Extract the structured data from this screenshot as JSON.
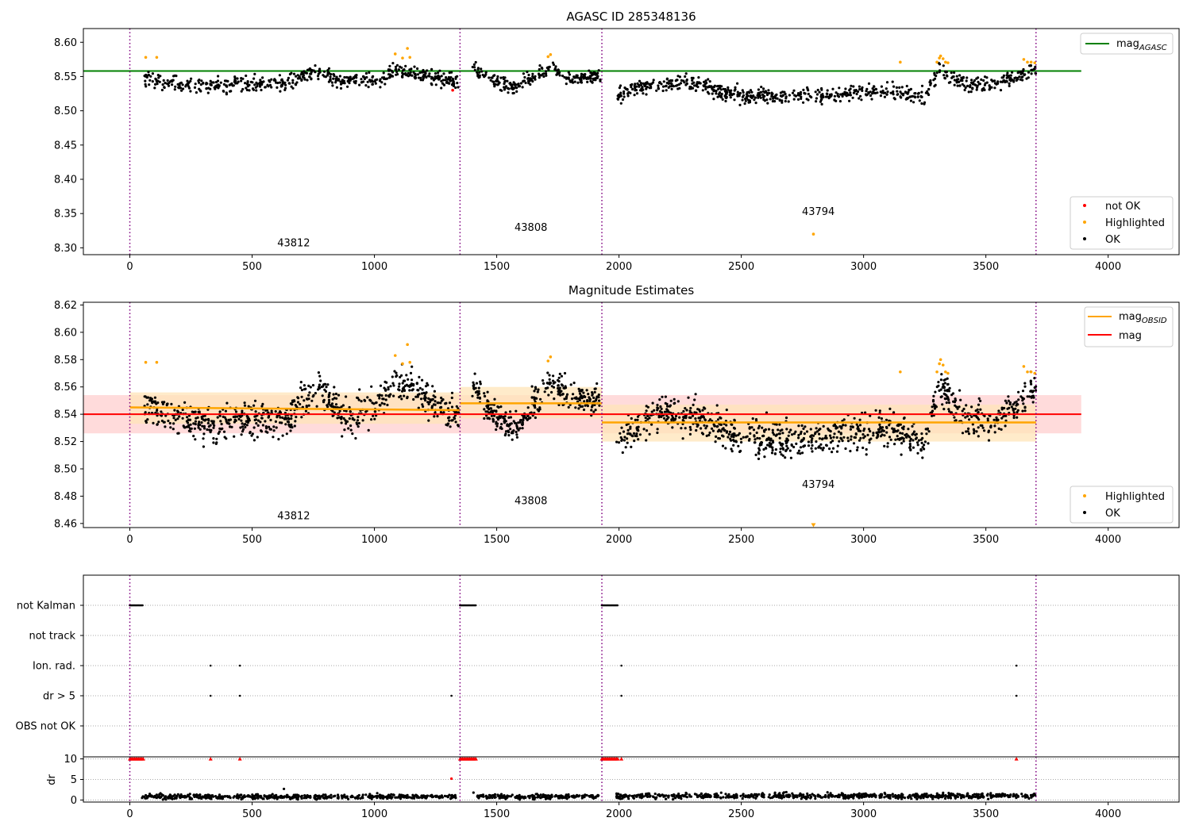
{
  "colors": {
    "ok": "#000000",
    "highlighted": "#ffa500",
    "not_ok": "#ff0000",
    "agasc_line": "#008000",
    "mag_line": "#ff0000",
    "mag_obsid_line": "#ffa500",
    "obs_boundary": "#800080",
    "band_mag": "#ffcccc",
    "band_obsid": "#ffe4b8"
  },
  "chart_data": [
    {
      "type": "scatter",
      "title": "AGASC ID 285348136",
      "xlabel": "",
      "ylabel": "",
      "xlim": [
        -190,
        4290
      ],
      "ylim": [
        8.29,
        8.62
      ],
      "x_ticks": [
        "0",
        "500",
        "1000",
        "1500",
        "2000",
        "2500",
        "3000",
        "3500",
        "4000"
      ],
      "y_ticks": [
        "8.30",
        "8.35",
        "8.40",
        "8.45",
        "8.50",
        "8.55",
        "8.60"
      ],
      "grid": false,
      "mag_agasc": 8.558,
      "mag_agasc_xrange": [
        -190,
        3890
      ],
      "obs_boundaries": [
        0,
        1350,
        1930,
        3705
      ],
      "observations": [
        {
          "obsid": "43812",
          "x_range": [
            0,
            1350
          ],
          "label_x": 670,
          "label_y": 8.302
        },
        {
          "obsid": "43808",
          "x_range": [
            1350,
            1930
          ],
          "label_x": 1640,
          "label_y": 8.325
        },
        {
          "obsid": "43794",
          "x_range": [
            1930,
            3705
          ],
          "label_x": 2815,
          "label_y": 8.348
        }
      ],
      "legends": [
        {
          "position": "top-right",
          "entries": [
            {
              "label": "mag",
              "subscript": "AGASC",
              "kind": "line",
              "color": "#008000"
            }
          ]
        },
        {
          "position": "bottom-right",
          "entries": [
            {
              "label": "not OK",
              "kind": "dot",
              "color": "#ff0000"
            },
            {
              "label": "Highlighted",
              "kind": "dot",
              "color": "#ffa500"
            },
            {
              "label": "OK",
              "kind": "dot",
              "color": "#000000"
            }
          ]
        }
      ],
      "series": [
        {
          "name": "OK",
          "color": "#000000",
          "segments": [
            {
              "x_start": 60,
              "x_end": 1345,
              "levels": [
                [
                  60,
                  8.548
                ],
                [
                  250,
                  8.535
                ],
                [
                  450,
                  8.538
                ],
                [
                  650,
                  8.54
                ],
                [
                  750,
                  8.557
                ],
                [
                  880,
                  8.543
                ],
                [
                  1000,
                  8.545
                ],
                [
                  1100,
                  8.56
                ],
                [
                  1250,
                  8.55
                ],
                [
                  1345,
                  8.54
                ]
              ],
              "spread": 0.007,
              "n": 520
            },
            {
              "x_start": 1400,
              "x_end": 1925,
              "levels": [
                [
                  1400,
                  8.562
                ],
                [
                  1500,
                  8.54
                ],
                [
                  1570,
                  8.535
                ],
                [
                  1720,
                  8.562
                ],
                [
                  1800,
                  8.548
                ],
                [
                  1925,
                  8.55
                ]
              ],
              "spread": 0.006,
              "n": 230
            },
            {
              "x_start": 1990,
              "x_end": 3705,
              "levels": [
                [
                  1990,
                  8.522
                ],
                [
                  2150,
                  8.54
                ],
                [
                  2300,
                  8.54
                ],
                [
                  2500,
                  8.522
                ],
                [
                  2800,
                  8.522
                ],
                [
                  3100,
                  8.53
                ],
                [
                  3250,
                  8.52
                ],
                [
                  3310,
                  8.562
                ],
                [
                  3400,
                  8.54
                ],
                [
                  3550,
                  8.54
                ],
                [
                  3705,
                  8.56
                ]
              ],
              "spread": 0.007,
              "n": 700
            }
          ]
        },
        {
          "name": "Highlighted",
          "color": "#ffa500",
          "points": [
            [
              65,
              8.578
            ],
            [
              110,
              8.578
            ],
            [
              1085,
              8.583
            ],
            [
              1135,
              8.591
            ],
            [
              1115,
              8.577
            ],
            [
              1145,
              8.578
            ],
            [
              1710,
              8.579
            ],
            [
              1720,
              8.582
            ],
            [
              3150,
              8.571
            ],
            [
              3300,
              8.571
            ],
            [
              3310,
              8.577
            ],
            [
              3315,
              8.58
            ],
            [
              3325,
              8.576
            ],
            [
              3335,
              8.571
            ],
            [
              3345,
              8.57
            ],
            [
              3655,
              8.575
            ],
            [
              3670,
              8.571
            ],
            [
              3685,
              8.571
            ],
            [
              3700,
              8.57
            ],
            [
              2795,
              8.32
            ]
          ]
        },
        {
          "name": "not OK",
          "color": "#ff0000",
          "points": [
            [
              1320,
              8.53
            ]
          ]
        }
      ]
    },
    {
      "type": "scatter",
      "title": "Magnitude Estimates",
      "xlabel": "",
      "ylabel": "",
      "xlim": [
        -190,
        4290
      ],
      "ylim": [
        8.457,
        8.622
      ],
      "x_ticks": [
        "0",
        "500",
        "1000",
        "1500",
        "2000",
        "2500",
        "3000",
        "3500",
        "4000"
      ],
      "y_ticks": [
        "8.46",
        "8.48",
        "8.50",
        "8.52",
        "8.54",
        "8.56",
        "8.58",
        "8.60",
        "8.62"
      ],
      "grid": false,
      "mag": 8.54,
      "mag_band": [
        8.526,
        8.554
      ],
      "mag_xrange": [
        -190,
        3890
      ],
      "mag_obsid": [
        {
          "obsid": "43812",
          "x_range": [
            0,
            1350
          ],
          "start": 8.545,
          "end": 8.543,
          "band": [
            8.533,
            8.556
          ]
        },
        {
          "obsid": "43808",
          "x_range": [
            1350,
            1930
          ],
          "start": 8.548,
          "end": 8.548,
          "band": [
            8.537,
            8.56
          ]
        },
        {
          "obsid": "43794",
          "x_range": [
            1930,
            3705
          ],
          "start": 8.534,
          "end": 8.534,
          "band": [
            8.52,
            8.547
          ]
        }
      ],
      "obs_boundaries": [
        0,
        1350,
        1930,
        3705
      ],
      "observations": [
        {
          "obsid": "43812",
          "label_x": 670,
          "label_y": 8.463
        },
        {
          "obsid": "43808",
          "label_x": 1640,
          "label_y": 8.474
        },
        {
          "obsid": "43794",
          "label_x": 2815,
          "label_y": 8.486
        }
      ],
      "legends": [
        {
          "position": "top-right",
          "entries": [
            {
              "label": "mag",
              "subscript": "OBSID",
              "kind": "line",
              "color": "#ffa500"
            },
            {
              "label": "mag",
              "kind": "line",
              "color": "#ff0000"
            }
          ]
        },
        {
          "position": "bottom-right",
          "entries": [
            {
              "label": "Highlighted",
              "kind": "dot",
              "color": "#ffa500"
            },
            {
              "label": "OK",
              "kind": "dot",
              "color": "#000000"
            }
          ]
        }
      ],
      "series": [
        {
          "name": "OK",
          "color": "#000000",
          "segments": [
            {
              "x_start": 60,
              "x_end": 1345,
              "levels": [
                [
                  60,
                  8.547
                ],
                [
                  200,
                  8.535
                ],
                [
                  350,
                  8.532
                ],
                [
                  500,
                  8.538
                ],
                [
                  650,
                  8.535
                ],
                [
                  780,
                  8.562
                ],
                [
                  880,
                  8.535
                ],
                [
                  1000,
                  8.545
                ],
                [
                  1100,
                  8.565
                ],
                [
                  1250,
                  8.548
                ],
                [
                  1345,
                  8.538
                ]
              ],
              "spread": 0.008,
              "n": 700
            },
            {
              "x_start": 1400,
              "x_end": 1925,
              "levels": [
                [
                  1400,
                  8.565
                ],
                [
                  1480,
                  8.54
                ],
                [
                  1570,
                  8.528
                ],
                [
                  1720,
                  8.565
                ],
                [
                  1800,
                  8.55
                ],
                [
                  1925,
                  8.552
                ]
              ],
              "spread": 0.007,
              "n": 320
            },
            {
              "x_start": 1990,
              "x_end": 3705,
              "levels": [
                [
                  1990,
                  8.52
                ],
                [
                  2150,
                  8.54
                ],
                [
                  2300,
                  8.54
                ],
                [
                  2500,
                  8.522
                ],
                [
                  2800,
                  8.522
                ],
                [
                  3100,
                  8.53
                ],
                [
                  3250,
                  8.518
                ],
                [
                  3310,
                  8.563
                ],
                [
                  3400,
                  8.538
                ],
                [
                  3550,
                  8.535
                ],
                [
                  3705,
                  8.56
                ]
              ],
              "spread": 0.008,
              "n": 900
            }
          ]
        },
        {
          "name": "Highlighted",
          "color": "#ffa500",
          "points": [
            [
              65,
              8.578
            ],
            [
              110,
              8.578
            ],
            [
              1085,
              8.583
            ],
            [
              1135,
              8.591
            ],
            [
              1115,
              8.577
            ],
            [
              1145,
              8.578
            ],
            [
              1710,
              8.579
            ],
            [
              1720,
              8.582
            ],
            [
              3150,
              8.571
            ],
            [
              3300,
              8.571
            ],
            [
              3310,
              8.577
            ],
            [
              3315,
              8.58
            ],
            [
              3325,
              8.576
            ],
            [
              3335,
              8.571
            ],
            [
              3345,
              8.57
            ],
            [
              3655,
              8.575
            ],
            [
              3670,
              8.571
            ],
            [
              3685,
              8.571
            ],
            [
              3700,
              8.57
            ]
          ]
        },
        {
          "name": "Highlighted (off-scale)",
          "color": "#ffa500",
          "marker": "triangle-down",
          "points": [
            [
              2795,
              8.459
            ]
          ]
        }
      ]
    },
    {
      "type": "scatter",
      "title": "",
      "xlabel": "",
      "ylabel": "",
      "xlim": [
        -190,
        4290
      ],
      "categories": [
        "not Kalman",
        "not track",
        "Ion. rad.",
        "dr > 5",
        "OBS not OK"
      ],
      "grid": "horizontal dotted",
      "obs_boundaries": [
        0,
        1350,
        1930,
        3705
      ],
      "flags": [
        {
          "category": "not Kalman",
          "ranges": [
            [
              0,
              55
            ],
            [
              1350,
              1415
            ],
            [
              1930,
              1995
            ]
          ],
          "points": []
        },
        {
          "category": "not track",
          "ranges": [],
          "points": []
        },
        {
          "category": "Ion. rad.",
          "ranges": [],
          "points": [
            330,
            450,
            2010,
            3625
          ]
        },
        {
          "category": "dr > 5",
          "ranges": [],
          "points": [
            330,
            450,
            1315,
            2010,
            3625
          ]
        },
        {
          "category": "OBS not OK",
          "ranges": [],
          "points": []
        }
      ]
    },
    {
      "type": "scatter",
      "title": "",
      "xlabel": "",
      "ylabel": "dr",
      "xlim": [
        -190,
        4290
      ],
      "ylim": [
        -0.5,
        10.5
      ],
      "x_ticks": [
        "0",
        "500",
        "1000",
        "1500",
        "2000",
        "2500",
        "3000",
        "3500",
        "4000"
      ],
      "y_ticks": [
        "0",
        "5",
        "10"
      ],
      "grid": "horizontal dotted",
      "obs_boundaries": [
        0,
        1350,
        1930,
        3705
      ],
      "series": [
        {
          "name": "dr",
          "color": "#000000",
          "segments": [
            {
              "x_start": 50,
              "x_end": 1345,
              "level": 0.8,
              "spread": 0.35,
              "n": 500
            },
            {
              "x_start": 1415,
              "x_end": 1925,
              "level": 0.8,
              "spread": 0.35,
              "n": 200
            },
            {
              "x_start": 1990,
              "x_end": 3705,
              "level": 1.0,
              "spread": 0.4,
              "n": 680
            }
          ],
          "extra_points": [
            [
              630,
              2.7
            ],
            [
              1405,
              1.8
            ],
            [
              1315,
              5.2
            ]
          ]
        },
        {
          "name": "dr (clipped)",
          "color": "#ff0000",
          "marker": "triangle-up",
          "ranges": [
            [
              0,
              55
            ],
            [
              1350,
              1415
            ],
            [
              1930,
              1995
            ]
          ],
          "points": [
            330,
            450,
            2010,
            3625
          ],
          "value": 10
        }
      ]
    }
  ]
}
